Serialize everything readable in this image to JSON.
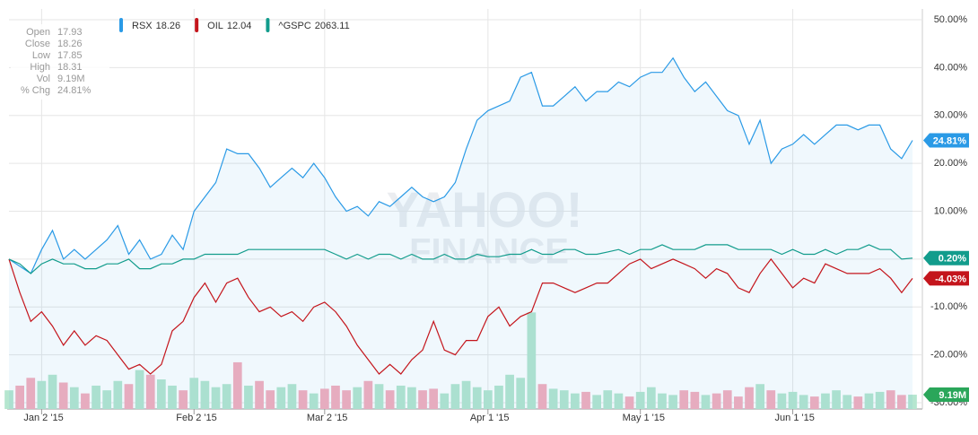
{
  "chart_data": {
    "type": "line",
    "watermark": [
      "YAHOO!",
      "FINANCE"
    ],
    "info": {
      "rows": [
        [
          "Open",
          "17.93"
        ],
        [
          "Close",
          "18.26"
        ],
        [
          "Low",
          "17.85"
        ],
        [
          "High",
          "18.31"
        ],
        [
          "Vol",
          "9.19M"
        ],
        [
          "% Chg",
          "24.81%"
        ]
      ]
    },
    "categories": [
      null,
      null,
      null,
      "Jan 2 '15",
      null,
      null,
      null,
      null,
      null,
      null,
      null,
      null,
      null,
      null,
      null,
      null,
      null,
      "Feb 2 '15",
      null,
      null,
      null,
      null,
      null,
      null,
      null,
      null,
      null,
      null,
      null,
      "Mar 2 '15",
      null,
      null,
      null,
      null,
      null,
      null,
      null,
      null,
      null,
      null,
      null,
      null,
      null,
      null,
      "Apr 1 '15",
      null,
      null,
      null,
      null,
      null,
      null,
      null,
      null,
      null,
      null,
      null,
      null,
      null,
      "May 1 '15",
      null,
      null,
      null,
      null,
      null,
      null,
      null,
      null,
      null,
      null,
      null,
      null,
      null,
      "Jun 1 '15",
      null,
      null,
      null,
      null,
      null,
      null,
      null,
      null,
      null,
      null,
      null
    ],
    "ylim": [
      -30,
      50
    ],
    "yticks": [
      {
        "value": 50,
        "label": "50.00%"
      },
      {
        "value": 40,
        "label": "40.00%"
      },
      {
        "value": 30,
        "label": "30.00%"
      },
      {
        "value": 20,
        "label": "20.00%"
      },
      {
        "value": 10,
        "label": "10.00%"
      },
      {
        "value": 0,
        "label": "0.00%"
      },
      {
        "value": -10,
        "label": "-10.00%"
      },
      {
        "value": -20,
        "label": "-20.00%"
      },
      {
        "value": -30,
        "label": "-30.00%"
      }
    ],
    "grid": true,
    "series": [
      {
        "name": "RSX",
        "legend_value": 18.26,
        "color": "#2a9ae6",
        "area": true,
        "last_label": "24.81%",
        "values": [
          0,
          -1.5,
          -3,
          2,
          6,
          0,
          2,
          0,
          2,
          4,
          7,
          1,
          4,
          0,
          1,
          5,
          2,
          10,
          13,
          16,
          23,
          22,
          22,
          19,
          15,
          17,
          19,
          17,
          20,
          17,
          13,
          10,
          11,
          9,
          12,
          11,
          13,
          15,
          13,
          12,
          13,
          16,
          23,
          29,
          31,
          32,
          33,
          38,
          39,
          32,
          32,
          34,
          36,
          33,
          35,
          35,
          37,
          36,
          38,
          39,
          39,
          42,
          38,
          35,
          37,
          34,
          31,
          30,
          24,
          29,
          20,
          23,
          24,
          26,
          24,
          26,
          28,
          28,
          27,
          28,
          28,
          23,
          21,
          24.81
        ]
      },
      {
        "name": "OIL",
        "legend_value": 12.04,
        "color": "#c4151c",
        "area": false,
        "last_label": "-4.03%",
        "values": [
          0,
          -7,
          -13,
          -11,
          -14,
          -18,
          -15,
          -18,
          -16,
          -17,
          -20,
          -23,
          -22,
          -24,
          -22,
          -15,
          -13,
          -8,
          -5,
          -9,
          -5,
          -4,
          -8,
          -11,
          -10,
          -12,
          -11,
          -13,
          -10,
          -9,
          -11,
          -14,
          -18,
          -21,
          -24,
          -22,
          -24,
          -21,
          -19,
          -13,
          -19,
          -20,
          -17,
          -17,
          -12,
          -10,
          -14,
          -12,
          -11,
          -5,
          -5,
          -6,
          -7,
          -6,
          -5,
          -5,
          -3,
          -1,
          0,
          -2,
          -1,
          0,
          -1,
          -2,
          -4,
          -2,
          -3,
          -6,
          -7,
          -3,
          0,
          -3,
          -6,
          -4,
          -5,
          -1,
          -2,
          -3,
          -3,
          -3,
          -2,
          -4,
          -7,
          -4.03
        ]
      },
      {
        "name": "^GSPC",
        "legend_value": 2063.11,
        "color": "#129c8c",
        "area": false,
        "last_label": "0.20%",
        "values": [
          0,
          -1,
          -3,
          -1,
          0,
          -1,
          -1,
          -2,
          -2,
          -1,
          -1,
          0,
          -2,
          -2,
          -1,
          -1,
          0,
          0,
          1,
          1,
          1,
          1,
          2,
          2,
          2,
          2,
          2,
          2,
          2,
          2,
          1,
          0,
          1,
          0,
          1,
          1,
          0,
          1,
          0,
          0,
          1,
          0,
          0,
          1,
          0.5,
          0.5,
          1,
          1,
          2,
          1,
          1,
          2,
          2,
          1,
          1,
          1.5,
          2,
          1,
          2,
          2,
          3,
          2,
          2,
          2,
          3,
          3,
          3,
          2,
          2,
          2,
          2,
          1,
          2,
          1,
          1,
          2,
          1,
          2,
          2,
          3,
          2,
          2,
          0,
          0.2
        ]
      }
    ],
    "volume": {
      "up_color": "#b5e6cf",
      "down_color": "#f5aebd",
      "badge_color": "#2aa65a",
      "ylim": [
        0,
        250
      ],
      "last_label": "9.19M",
      "values": [
        12,
        15,
        20,
        18,
        22,
        17,
        14,
        10,
        15,
        12,
        18,
        16,
        25,
        22,
        19,
        15,
        12,
        20,
        18,
        14,
        16,
        30,
        15,
        18,
        12,
        14,
        16,
        12,
        10,
        13,
        15,
        12,
        14,
        18,
        16,
        12,
        15,
        14,
        12,
        13,
        10,
        16,
        18,
        14,
        12,
        15,
        22,
        20,
        62,
        16,
        13,
        12,
        10,
        11,
        9,
        12,
        10,
        8,
        11,
        14,
        10,
        9,
        12,
        11,
        9,
        10,
        12,
        8,
        14,
        16,
        12,
        10,
        11,
        9,
        8,
        10,
        12,
        9,
        8,
        10,
        11,
        12,
        9,
        9.19
      ]
    }
  }
}
